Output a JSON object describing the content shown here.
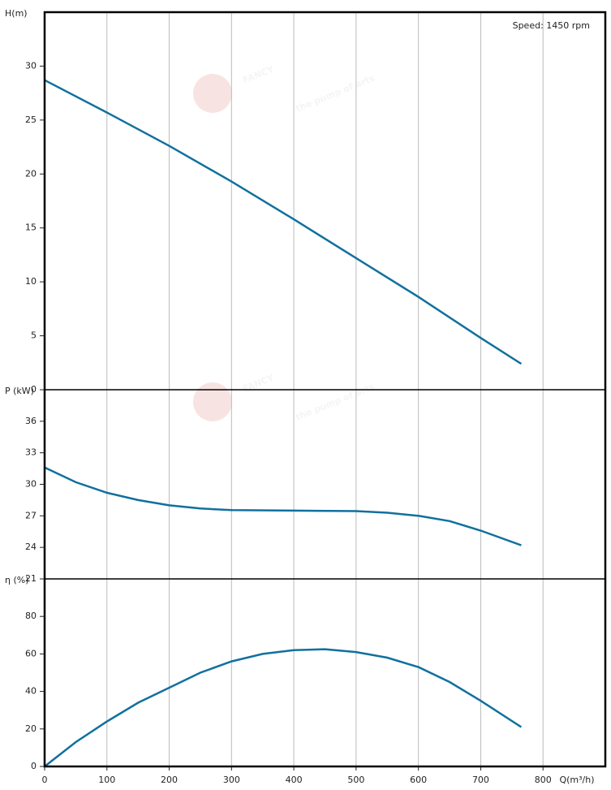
{
  "watermark": {
    "brand": "FANCY",
    "slogan": "the pump of arts"
  },
  "chart_data": [
    {
      "type": "line",
      "ylabel": "H(m)",
      "annotation": "Speed: 1450 rpm",
      "x": [
        0,
        100,
        200,
        300,
        400,
        500,
        600,
        700,
        765
      ],
      "series": [
        {
          "name": "H",
          "color": "#11709e",
          "values": [
            28.7,
            25.7,
            22.6,
            19.3,
            15.8,
            12.2,
            8.6,
            4.8,
            2.4
          ]
        }
      ],
      "ylim": [
        0,
        35
      ],
      "yticks": [
        0,
        5,
        10,
        15,
        20,
        25,
        30
      ]
    },
    {
      "type": "line",
      "ylabel": "P (kW)",
      "x": [
        0,
        50,
        100,
        150,
        200,
        250,
        300,
        400,
        500,
        550,
        600,
        650,
        700,
        765
      ],
      "series": [
        {
          "name": "P",
          "color": "#11709e",
          "values": [
            31.6,
            30.2,
            29.2,
            28.5,
            28.0,
            27.7,
            27.55,
            27.5,
            27.45,
            27.3,
            27.0,
            26.5,
            25.6,
            24.2
          ]
        }
      ],
      "ylim": [
        21,
        39
      ],
      "yticks": [
        21,
        24,
        27,
        30,
        33,
        36
      ]
    },
    {
      "type": "line",
      "ylabel": "η (%)",
      "xlabel": "Q(m³/h)",
      "x": [
        0,
        50,
        100,
        150,
        200,
        250,
        300,
        350,
        400,
        450,
        500,
        550,
        600,
        650,
        700,
        765
      ],
      "series": [
        {
          "name": "η",
          "color": "#11709e",
          "values": [
            0,
            13,
            24,
            34,
            42,
            50,
            56,
            60,
            62,
            62.5,
            61,
            58,
            53,
            45,
            35,
            21
          ]
        }
      ],
      "ylim": [
        0,
        100
      ],
      "yticks": [
        0,
        20,
        40,
        60,
        80
      ],
      "xlim": [
        0,
        900
      ],
      "xticks": [
        0,
        100,
        200,
        300,
        400,
        500,
        600,
        700,
        800
      ]
    }
  ]
}
